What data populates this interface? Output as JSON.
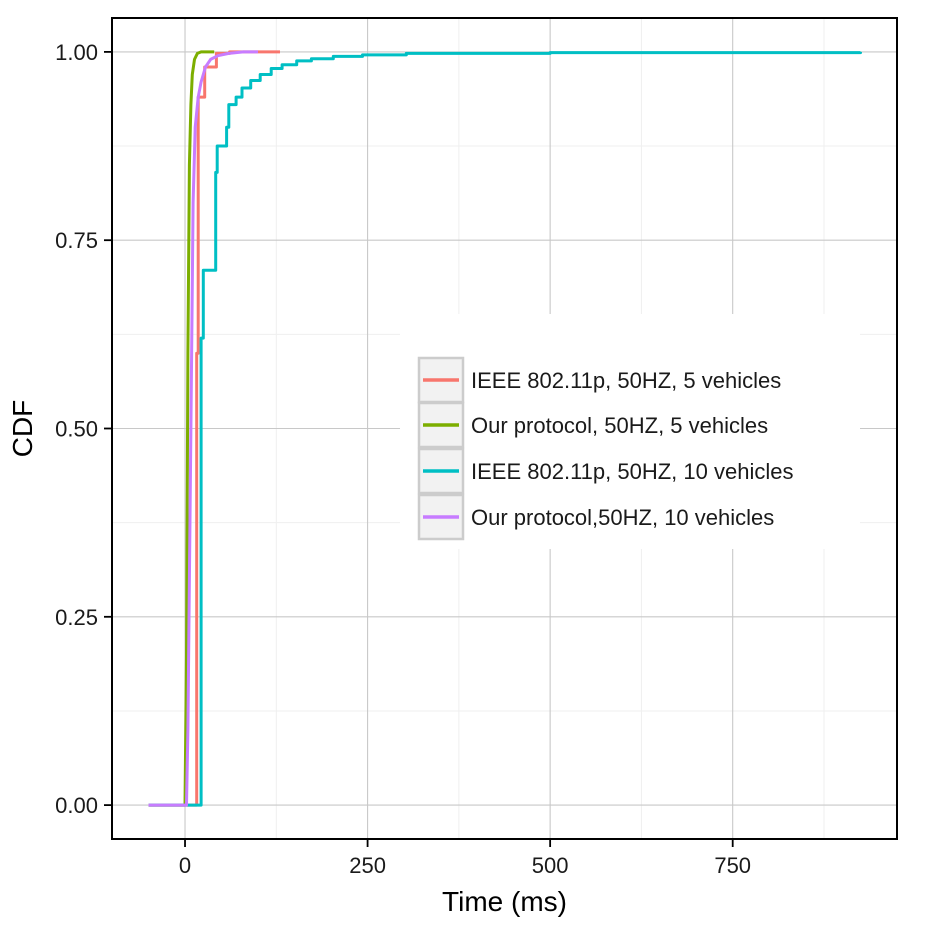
{
  "chart_data": {
    "type": "line",
    "title": "",
    "xlabel": "Time (ms)",
    "ylabel": "CDF",
    "xlim": [
      -100,
      975
    ],
    "ylim": [
      -0.045,
      1.045
    ],
    "x_ticks": [
      0,
      250,
      500,
      750
    ],
    "x_tick_labels": [
      "0",
      "250",
      "500",
      "750"
    ],
    "y_ticks": [
      0,
      0.25,
      0.5,
      0.75,
      1
    ],
    "y_tick_labels": [
      "0.00",
      "0.25",
      "0.50",
      "0.75",
      "1.00"
    ],
    "grid": true,
    "legend_position": "center-right",
    "series": [
      {
        "name": "IEEE 802.11p, 50HZ, 5 vehicles",
        "color": "#F8766D",
        "step": true,
        "points": [
          [
            -50,
            0
          ],
          [
            15,
            0
          ],
          [
            16,
            0.6
          ],
          [
            18,
            0.94
          ],
          [
            26,
            0.94
          ],
          [
            27,
            0.98
          ],
          [
            42,
            0.98
          ],
          [
            43,
            0.998
          ],
          [
            60,
            0.998
          ],
          [
            61,
            1
          ],
          [
            130,
            1
          ]
        ]
      },
      {
        "name": "Our protocol, 50HZ, 5 vehicles",
        "color": "#7CAE00",
        "step": false,
        "points": [
          [
            -50,
            0
          ],
          [
            0,
            0
          ],
          [
            2,
            0.2
          ],
          [
            4,
            0.6
          ],
          [
            6,
            0.85
          ],
          [
            8,
            0.93
          ],
          [
            10,
            0.97
          ],
          [
            13,
            0.99
          ],
          [
            17,
            0.998
          ],
          [
            22,
            1
          ],
          [
            40,
            1
          ]
        ]
      },
      {
        "name": "IEEE 802.11p, 50HZ, 10 vehicles",
        "color": "#00BFC4",
        "step": true,
        "points": [
          [
            -50,
            0
          ],
          [
            20,
            0
          ],
          [
            22,
            0.62
          ],
          [
            25,
            0.71
          ],
          [
            40,
            0.71
          ],
          [
            42,
            0.84
          ],
          [
            44,
            0.875
          ],
          [
            55,
            0.875
          ],
          [
            57,
            0.9
          ],
          [
            60,
            0.93
          ],
          [
            68,
            0.93
          ],
          [
            70,
            0.94
          ],
          [
            76,
            0.94
          ],
          [
            78,
            0.952
          ],
          [
            88,
            0.952
          ],
          [
            90,
            0.962
          ],
          [
            100,
            0.962
          ],
          [
            103,
            0.97
          ],
          [
            115,
            0.97
          ],
          [
            118,
            0.978
          ],
          [
            130,
            0.978
          ],
          [
            133,
            0.983
          ],
          [
            150,
            0.983
          ],
          [
            153,
            0.988
          ],
          [
            170,
            0.988
          ],
          [
            173,
            0.991
          ],
          [
            200,
            0.991
          ],
          [
            203,
            0.994
          ],
          [
            240,
            0.994
          ],
          [
            243,
            0.996
          ],
          [
            300,
            0.996
          ],
          [
            303,
            0.998
          ],
          [
            400,
            0.998
          ],
          [
            500,
            0.999
          ],
          [
            700,
            0.999
          ],
          [
            925,
            1
          ]
        ]
      },
      {
        "name": "Our protocol,50HZ, 10 vehicles",
        "color": "#C77CFF",
        "step": false,
        "points": [
          [
            -50,
            0
          ],
          [
            2,
            0
          ],
          [
            4,
            0.1
          ],
          [
            8,
            0.5
          ],
          [
            11,
            0.8
          ],
          [
            14,
            0.9
          ],
          [
            18,
            0.94
          ],
          [
            22,
            0.96
          ],
          [
            28,
            0.98
          ],
          [
            35,
            0.99
          ],
          [
            45,
            0.995
          ],
          [
            60,
            0.998
          ],
          [
            80,
            1
          ],
          [
            100,
            1
          ]
        ]
      }
    ]
  }
}
